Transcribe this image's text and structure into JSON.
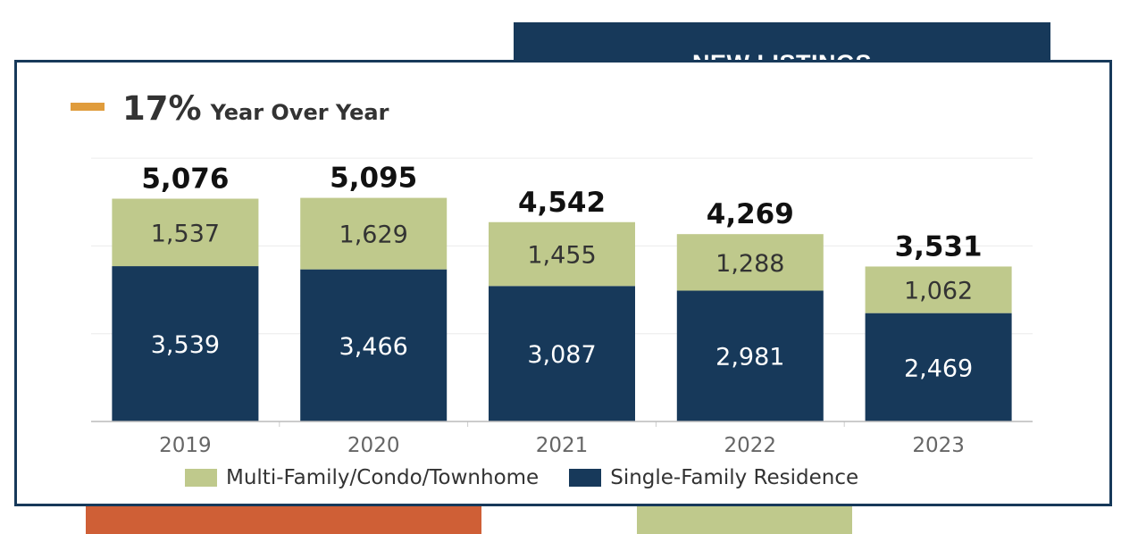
{
  "header": {
    "title": "NEW LISTINGS"
  },
  "yoy": {
    "percent": "17%",
    "label": "Year Over Year",
    "indicator_color": "#e09c3c"
  },
  "colors": {
    "single_family": "#17395a",
    "multi_family": "#bfc98c",
    "accent_orange": "#cf5f36"
  },
  "chart_data": {
    "type": "bar",
    "stacked": true,
    "categories": [
      "2019",
      "2020",
      "2021",
      "2022",
      "2023"
    ],
    "series": [
      {
        "name": "Single-Family Residence",
        "values": [
          3539,
          3466,
          3087,
          2981,
          2469
        ],
        "value_labels": [
          "3,539",
          "3,466",
          "3,087",
          "2,981",
          "2,469"
        ]
      },
      {
        "name": "Multi-Family/Condo/Townhome",
        "values": [
          1537,
          1629,
          1455,
          1288,
          1062
        ],
        "value_labels": [
          "1,537",
          "1,629",
          "1,455",
          "1,288",
          "1,062"
        ]
      }
    ],
    "totals": [
      5076,
      5095,
      4542,
      4269,
      3531
    ],
    "total_labels": [
      "5,076",
      "5,095",
      "4,542",
      "4,269",
      "3,531"
    ],
    "ylim": [
      0,
      6000
    ],
    "grid": true,
    "legend_position": "bottom"
  },
  "legend": {
    "items": [
      {
        "label": "Multi-Family/Condo/Townhome"
      },
      {
        "label": "Single-Family Residence"
      }
    ]
  }
}
